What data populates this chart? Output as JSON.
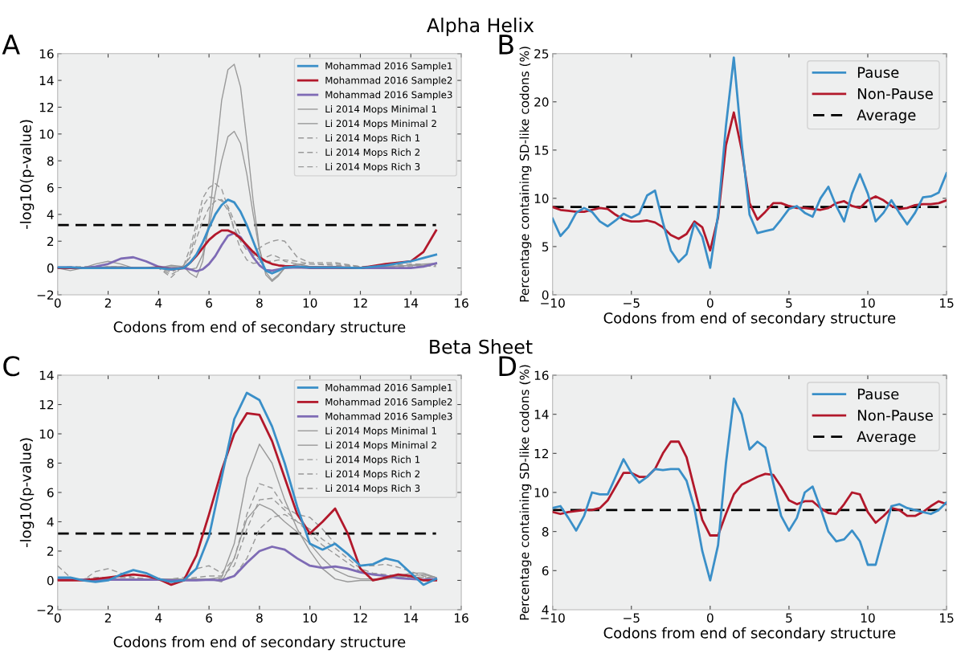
{
  "chart_data": [
    {
      "type": "line",
      "title": "A",
      "annotations": [
        "Alpha Helix"
      ],
      "xlabel": "Codons from end of secondary structure",
      "ylabel": "-log10(p-value)",
      "x": [
        0,
        0.5,
        1,
        1.5,
        2,
        2.5,
        3,
        3.5,
        4,
        4.5,
        5,
        5.25,
        5.5,
        5.75,
        6,
        6.25,
        6.5,
        6.75,
        7,
        7.25,
        7.5,
        7.75,
        8,
        8.25,
        8.5,
        8.75,
        9,
        9.5,
        10,
        11,
        12,
        13,
        14,
        14.5,
        15
      ],
      "xlim": [
        0,
        16
      ],
      "xticks": [
        0,
        2,
        4,
        6,
        8,
        10,
        12,
        14,
        16
      ],
      "ylim": [
        -2,
        16
      ],
      "yticks": [
        -2,
        0,
        2,
        4,
        6,
        8,
        10,
        12,
        14,
        16
      ],
      "grid": false,
      "legend": "top right",
      "ref_lines": [
        {
          "axis": "y",
          "value": 3.2,
          "color": "#000000",
          "line_style": "dashed"
        }
      ],
      "series": [
        {
          "name": "Mohammad 2016 Sample1",
          "color": "#3a8fc8",
          "line_style": "solid",
          "values": [
            0.05,
            0.05,
            0,
            0,
            0,
            0,
            0,
            0,
            0,
            -0.1,
            0,
            0.4,
            1.0,
            1.9,
            3.0,
            4.0,
            4.7,
            5.1,
            4.9,
            4.2,
            3.2,
            2.0,
            0.8,
            -0.2,
            -0.4,
            -0.2,
            0.05,
            0.1,
            0.05,
            0.05,
            0,
            0.2,
            0.5,
            0.75,
            1.0
          ]
        },
        {
          "name": "Mohammad 2016 Sample2",
          "color": "#b2182b",
          "line_style": "solid",
          "values": [
            0,
            0,
            0,
            0,
            0,
            0,
            0,
            0,
            0.05,
            -0.1,
            0,
            0.4,
            0.9,
            1.5,
            2.1,
            2.5,
            2.8,
            2.8,
            2.6,
            2.2,
            1.7,
            1.2,
            0.8,
            0.5,
            0.3,
            0.2,
            0.15,
            0.1,
            0.05,
            0.05,
            0,
            0.3,
            0.5,
            1.2,
            2.8
          ]
        },
        {
          "name": "Mohammad 2016 Sample3",
          "color": "#7e6bb5",
          "line_style": "solid",
          "values": [
            0.05,
            0.05,
            0,
            0.1,
            0.3,
            0.7,
            0.8,
            0.5,
            0.1,
            -0.05,
            0,
            -0.1,
            -0.25,
            -0.1,
            0.3,
            0.9,
            1.7,
            2.4,
            2.6,
            2.3,
            1.6,
            0.8,
            0.2,
            -0.15,
            -0.2,
            -0.1,
            0,
            0.05,
            0,
            0,
            0,
            0,
            0,
            0.1,
            0.35
          ]
        },
        {
          "name": "Li 2014 Mops Minimal 1",
          "color": "#999999",
          "line_style": "solid",
          "values": [
            0,
            -0.2,
            0,
            0.3,
            0.5,
            0.3,
            0,
            0,
            0,
            0.1,
            0.1,
            -0.4,
            -0.7,
            0.5,
            3.5,
            8,
            12.5,
            14.8,
            15.2,
            13.5,
            9.5,
            5,
            1.5,
            -0.5,
            -1.0,
            -0.6,
            0,
            0.3,
            0.1,
            0,
            0,
            0.1,
            0.2,
            0.3,
            0.35
          ]
        },
        {
          "name": "Li 2014 Mops Minimal 2",
          "color": "#999999",
          "line_style": "solid",
          "values": [
            0,
            0,
            0,
            0,
            0.1,
            0.1,
            0,
            0,
            0,
            0.2,
            0.1,
            -0.1,
            0,
            1,
            3,
            5.6,
            8,
            9.8,
            10.2,
            9.3,
            7,
            4,
            1.3,
            -0.3,
            -0.9,
            -0.5,
            0,
            0.3,
            0.1,
            0.1,
            0,
            0.1,
            0.2,
            0.2,
            0.3
          ]
        },
        {
          "name": "Li 2014 Mops Rich 1",
          "color": "#999999",
          "line_style": "dashed",
          "values": [
            0,
            0,
            0,
            0,
            0,
            0,
            0,
            0,
            0,
            -0.7,
            0.2,
            1.5,
            3.3,
            5.2,
            6.0,
            6.3,
            5.9,
            4.5,
            2.8,
            1.4,
            0.6,
            0.35,
            0.4,
            0.8,
            1.0,
            0.8,
            0.5,
            0.3,
            0.3,
            0.3,
            0.1,
            0.1,
            0.2,
            0.2,
            0.1
          ]
        },
        {
          "name": "Li 2014 Mops Rich 2",
          "color": "#999999",
          "line_style": "dashed",
          "values": [
            0,
            0.1,
            0.1,
            0.1,
            0,
            0,
            0,
            0,
            0,
            -0.5,
            0.1,
            1,
            2.8,
            4.6,
            5.3,
            5.2,
            5.0,
            4.3,
            3.0,
            2.0,
            1.3,
            1.2,
            1.5,
            1.8,
            2.0,
            2.1,
            2.0,
            0.8,
            0.4,
            0.4,
            0.1,
            0.2,
            0.3,
            0.3,
            0.3
          ]
        },
        {
          "name": "Li 2014 Mops Rich 3",
          "color": "#999999",
          "line_style": "dashed",
          "values": [
            0,
            0,
            0,
            0,
            0.1,
            0.1,
            0,
            0,
            0,
            -0.3,
            0.2,
            0.8,
            2.2,
            3.5,
            4.5,
            5.0,
            5.1,
            4.6,
            3.5,
            2.4,
            1.6,
            1.0,
            0.6,
            0.5,
            0.5,
            0.6,
            0.6,
            0.5,
            0.3,
            0.2,
            0.1,
            0.1,
            0.1,
            0.1,
            0.2
          ]
        }
      ]
    },
    {
      "type": "line",
      "title": "B",
      "xlabel": "Codons from end of secondary structure",
      "ylabel": "Percentage containing SD-like codons (%)",
      "x": [
        -10,
        -9.5,
        -9,
        -8.5,
        -8,
        -7.5,
        -7,
        -6.5,
        -6,
        -5.5,
        -5,
        -4.5,
        -4,
        -3.5,
        -3,
        -2.5,
        -2,
        -1.5,
        -1,
        -0.5,
        0,
        0.5,
        1,
        1.5,
        2,
        2.5,
        3,
        3.5,
        4,
        4.5,
        5,
        5.5,
        6,
        6.5,
        7,
        7.5,
        8,
        8.5,
        9,
        9.5,
        10,
        10.5,
        11,
        11.5,
        12,
        12.5,
        13,
        13.5,
        14,
        14.5,
        15
      ],
      "xlim": [
        -10,
        15
      ],
      "xticks": [
        -10,
        -5,
        0,
        5,
        10,
        15
      ],
      "ylim": [
        0,
        25
      ],
      "yticks": [
        0,
        5,
        10,
        15,
        20,
        25
      ],
      "grid": false,
      "legend": "top right",
      "ref_lines": [
        {
          "axis": "y",
          "value": 9.1,
          "label": "Average",
          "color": "#000000",
          "line_style": "dashed"
        }
      ],
      "series": [
        {
          "name": "Pause",
          "color": "#3a8fc8",
          "line_style": "solid",
          "values": [
            7.9,
            6.1,
            7.0,
            8.5,
            9.0,
            8.6,
            7.6,
            7.1,
            7.7,
            8.4,
            8.0,
            8.4,
            10.3,
            10.8,
            7.5,
            4.6,
            3.4,
            4.2,
            7.4,
            6.0,
            2.8,
            8.3,
            17.5,
            24.6,
            15.7,
            8.3,
            6.4,
            6.6,
            6.8,
            7.8,
            8.9,
            9.2,
            8.5,
            8.1,
            10.0,
            11.2,
            9.2,
            7.6,
            10.5,
            12.5,
            10.5,
            7.6,
            8.5,
            9.8,
            8.5,
            7.3,
            8.5,
            10.1,
            10.2,
            10.6,
            12.6
          ]
        },
        {
          "name": "Non-Pause",
          "color": "#b2182b",
          "line_style": "solid",
          "values": [
            9.1,
            8.8,
            8.7,
            8.6,
            8.6,
            8.8,
            9.0,
            8.9,
            8.3,
            7.8,
            7.6,
            7.6,
            7.7,
            7.5,
            7.0,
            6.2,
            5.8,
            6.3,
            7.6,
            7.0,
            4.6,
            8.0,
            15.5,
            18.9,
            15.0,
            9.5,
            7.8,
            8.6,
            9.5,
            9.5,
            9.2,
            9.0,
            9.0,
            8.9,
            8.8,
            9.0,
            9.5,
            9.7,
            9.2,
            9.0,
            9.8,
            10.2,
            9.8,
            9.2,
            8.9,
            9.0,
            9.3,
            9.4,
            9.4,
            9.5,
            9.8
          ]
        }
      ]
    },
    {
      "type": "line",
      "title": "C",
      "annotations": [
        "Beta Sheet"
      ],
      "xlabel": "Codons from end of secondary structure",
      "ylabel": "-log10(p-value)",
      "x": [
        0,
        0.5,
        1,
        1.5,
        2,
        2.5,
        3,
        3.5,
        4,
        4.5,
        5,
        5.5,
        6,
        6.5,
        7,
        7.5,
        8,
        8.5,
        9,
        9.5,
        10,
        10.5,
        11,
        11.5,
        12,
        12.5,
        13,
        13.5,
        14,
        14.5,
        15
      ],
      "xlim": [
        0,
        16
      ],
      "xticks": [
        0,
        2,
        4,
        6,
        8,
        10,
        12,
        14,
        16
      ],
      "ylim": [
        -2,
        14
      ],
      "yticks": [
        -2,
        0,
        2,
        4,
        6,
        8,
        10,
        12,
        14
      ],
      "grid": false,
      "legend": "top right",
      "ref_lines": [
        {
          "axis": "y",
          "value": 3.2,
          "color": "#000000",
          "line_style": "dashed"
        }
      ],
      "series": [
        {
          "name": "Mohammad 2016 Sample1",
          "color": "#3a8fc8",
          "line_style": "solid",
          "values": [
            0.2,
            0.2,
            0,
            -0.1,
            0,
            0.4,
            0.7,
            0.5,
            0.1,
            -0.1,
            0,
            0.8,
            3.0,
            7.0,
            11.0,
            12.8,
            12.3,
            10.5,
            8.0,
            5.0,
            2.5,
            2.1,
            2.5,
            1.8,
            1.0,
            1.1,
            1.5,
            1.3,
            0.5,
            -0.3,
            0.1
          ]
        },
        {
          "name": "Mohammad 2016 Sample2",
          "color": "#b2182b",
          "line_style": "solid",
          "values": [
            0,
            0,
            0,
            0.1,
            0.2,
            0.3,
            0.4,
            0.3,
            0.1,
            -0.3,
            0,
            1.7,
            4.5,
            7.5,
            10.0,
            11.4,
            11.3,
            9.5,
            7.0,
            4.5,
            3.2,
            4.0,
            4.9,
            3.2,
            0.8,
            0,
            0.2,
            0.4,
            0.3,
            0,
            0
          ]
        },
        {
          "name": "Mohammad 2016 Sample3",
          "color": "#7e6bb5",
          "line_style": "solid",
          "values": [
            0.05,
            0.05,
            0.05,
            0.05,
            0.05,
            0.05,
            0.05,
            0.05,
            0.05,
            0,
            0,
            0,
            0.05,
            0,
            0.3,
            1.2,
            2.0,
            2.3,
            2.1,
            1.5,
            1.0,
            0.85,
            0.95,
            0.8,
            0.55,
            0.4,
            0.3,
            0.15,
            0.1,
            0.05,
            0.1
          ]
        },
        {
          "name": "Li 2014 Mops Minimal 1",
          "color": "#999999",
          "line_style": "solid",
          "values": [
            0.1,
            0.1,
            0.1,
            0.1,
            0.1,
            0.1,
            0.1,
            0.1,
            0.1,
            0.1,
            0.1,
            0.1,
            0.1,
            0.2,
            2.5,
            7.0,
            9.3,
            8.0,
            5.5,
            3.5,
            2.0,
            0.8,
            0.1,
            -0.1,
            0,
            0,
            0.1,
            0.2,
            0.3,
            0.4,
            0.2
          ]
        },
        {
          "name": "Li 2014 Mops Minimal 2",
          "color": "#999999",
          "line_style": "solid",
          "values": [
            0.1,
            0.1,
            0.1,
            0.1,
            0.1,
            0.1,
            0.1,
            0.1,
            0.1,
            0.1,
            0.1,
            0.1,
            0.1,
            -0.1,
            1.5,
            4.2,
            5.2,
            4.8,
            4.0,
            3.3,
            2.5,
            1.5,
            0.7,
            0.3,
            0.1,
            0.1,
            0.1,
            0.3,
            0.5,
            0.5,
            0.2
          ]
        },
        {
          "name": "Li 2014 Mops Rich 1",
          "color": "#999999",
          "line_style": "dashed",
          "values": [
            1.0,
            0.2,
            0,
            0.6,
            0.8,
            0.5,
            0.2,
            0.1,
            0.1,
            0.1,
            0.2,
            0.8,
            1.0,
            0.5,
            1.5,
            4.5,
            6.6,
            6.3,
            5.0,
            4.5,
            4.3,
            3.5,
            2.5,
            1.8,
            1.0,
            1.0,
            1.1,
            0.9,
            0.6,
            0.3,
            0.2
          ]
        },
        {
          "name": "Li 2014 Mops Rich 2",
          "color": "#999999",
          "line_style": "dashed",
          "values": [
            0.1,
            0.1,
            0.1,
            0.2,
            0.2,
            0.2,
            0.2,
            0.1,
            0.1,
            0.1,
            0.1,
            0.2,
            0.3,
            0.3,
            1.0,
            3.5,
            5.5,
            5.6,
            4.8,
            4.0,
            3.2,
            2.4,
            1.8,
            1.2,
            0.6,
            0.4,
            0.3,
            0.3,
            0.3,
            0.2,
            0.2
          ]
        },
        {
          "name": "Li 2014 Mops Rich 3",
          "color": "#999999",
          "line_style": "dashed",
          "values": [
            0.1,
            0.1,
            0.1,
            0.1,
            0.1,
            0.1,
            0.1,
            0.1,
            0.1,
            0.1,
            0.1,
            0.1,
            0.1,
            0.1,
            0.3,
            1.5,
            3.5,
            4.3,
            4.5,
            4.0,
            3.5,
            2.8,
            2.2,
            1.5,
            0.8,
            0.5,
            0.4,
            0.3,
            0.2,
            0.2,
            0.1
          ]
        }
      ]
    },
    {
      "type": "line",
      "title": "D",
      "xlabel": "Codons from end of secondary structure",
      "ylabel": "Percentage containing SD-like codons (%)",
      "x": [
        -10,
        -9.5,
        -9,
        -8.5,
        -8,
        -7.5,
        -7,
        -6.5,
        -6,
        -5.5,
        -5,
        -4.5,
        -4,
        -3.5,
        -3,
        -2.5,
        -2,
        -1.5,
        -1,
        -0.5,
        0,
        0.5,
        1,
        1.5,
        2,
        2.5,
        3,
        3.5,
        4,
        4.5,
        5,
        5.5,
        6,
        6.5,
        7,
        7.5,
        8,
        8.5,
        9,
        9.5,
        10,
        10.5,
        11,
        11.5,
        12,
        12.5,
        13,
        13.5,
        14,
        14.5,
        15
      ],
      "xlim": [
        -10,
        15
      ],
      "xticks": [
        -10,
        -5,
        0,
        5,
        10,
        15
      ],
      "ylim": [
        4,
        16
      ],
      "yticks": [
        4,
        6,
        8,
        10,
        12,
        14,
        16
      ],
      "grid": false,
      "legend": "top right",
      "ref_lines": [
        {
          "axis": "y",
          "value": 9.1,
          "label": "Average",
          "color": "#000000",
          "line_style": "dashed"
        }
      ],
      "series": [
        {
          "name": "Pause",
          "color": "#3a8fc8",
          "line_style": "solid",
          "values": [
            9.2,
            9.3,
            8.7,
            8.05,
            8.8,
            10.0,
            9.9,
            9.9,
            10.8,
            11.7,
            11.0,
            10.5,
            10.8,
            11.2,
            11.15,
            11.2,
            11.2,
            10.6,
            9.2,
            7.0,
            5.5,
            7.3,
            11.5,
            14.8,
            14.0,
            12.2,
            12.6,
            12.3,
            10.5,
            8.8,
            8.05,
            8.7,
            10.0,
            10.3,
            9.2,
            8.0,
            7.5,
            7.6,
            8.05,
            7.5,
            6.3,
            6.3,
            7.8,
            9.3,
            9.4,
            9.2,
            9.1,
            9.0,
            8.9,
            9.1,
            9.5
          ]
        },
        {
          "name": "Non-Pause",
          "color": "#b2182b",
          "line_style": "solid",
          "values": [
            9.0,
            8.9,
            9.0,
            9.05,
            9.1,
            9.1,
            9.2,
            9.6,
            10.3,
            11.0,
            11.0,
            10.8,
            10.8,
            11.2,
            12.0,
            12.6,
            12.6,
            11.8,
            10.2,
            8.6,
            7.8,
            7.8,
            8.9,
            9.9,
            10.4,
            10.6,
            10.8,
            10.95,
            10.9,
            10.3,
            9.6,
            9.4,
            9.55,
            9.55,
            9.2,
            8.95,
            8.9,
            9.4,
            10.0,
            9.9,
            9.0,
            8.45,
            8.8,
            9.2,
            9.1,
            8.8,
            8.8,
            9.0,
            9.3,
            9.55,
            9.4
          ]
        }
      ]
    }
  ]
}
